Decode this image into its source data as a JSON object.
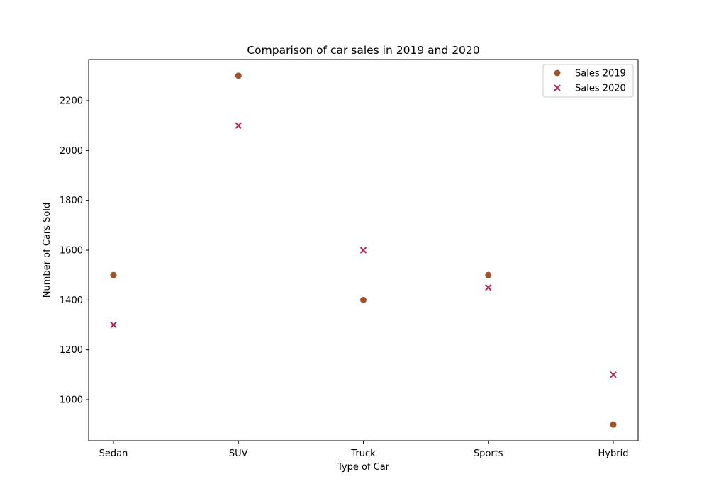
{
  "chart_data": {
    "type": "scatter",
    "title": "Comparison of car sales in 2019 and 2020",
    "xlabel": "Type of Car",
    "ylabel": "Number of Cars Sold",
    "categories": [
      "Sedan",
      "SUV",
      "Truck",
      "Sports",
      "Hybrid"
    ],
    "ylim": [
      835,
      2365
    ],
    "yticks": [
      1000,
      1200,
      1400,
      1600,
      1800,
      2000,
      2200
    ],
    "grid": false,
    "legend_position": "top-right",
    "series": [
      {
        "name": "Sales 2019",
        "marker": "circle",
        "color": "#a0522d",
        "values": [
          1500,
          2300,
          1400,
          1500,
          900
        ]
      },
      {
        "name": "Sales 2020",
        "marker": "x",
        "color": "#b5245e",
        "values": [
          1300,
          2100,
          1600,
          1450,
          1100
        ]
      }
    ]
  }
}
